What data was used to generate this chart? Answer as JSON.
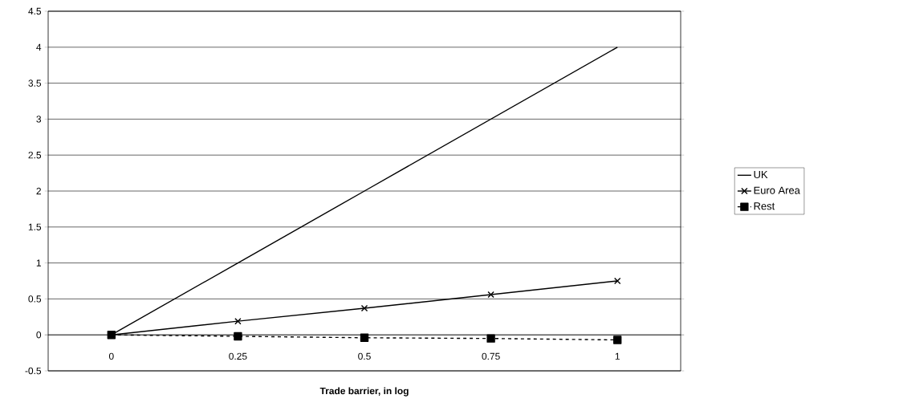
{
  "chart_data": {
    "type": "line",
    "xlabel": "Trade barrier, in log",
    "categories": [
      "0",
      "0.25",
      "0.5",
      "0.75",
      "1"
    ],
    "series": [
      {
        "name": "UK",
        "color": "#000000",
        "marker": "none",
        "line_style": "solid",
        "values": [
          0,
          1,
          2,
          3,
          4
        ]
      },
      {
        "name": "Euro Area",
        "color": "#000000",
        "marker": "cross",
        "line_style": "solid",
        "values": [
          0,
          0.19,
          0.37,
          0.56,
          0.75
        ]
      },
      {
        "name": "Rest",
        "color": "#000000",
        "marker": "square",
        "line_style": "dashed",
        "values": [
          0,
          -0.02,
          -0.04,
          -0.05,
          -0.07
        ]
      }
    ],
    "ylim": [
      -0.5,
      4.5
    ],
    "yticks": [
      -0.5,
      0,
      0.5,
      1,
      1.5,
      2,
      2.5,
      3,
      3.5,
      4,
      4.5
    ],
    "grid": "y",
    "legend": "right"
  }
}
